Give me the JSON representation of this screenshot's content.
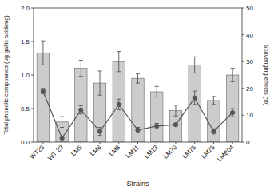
{
  "chart_data": {
    "type": "bar",
    "xlabel": "Strains",
    "ylabel": "Total phenolic compounds (ug gallic acid/mg)",
    "y2label": "Scavenging effects (%)",
    "categories": [
      "WT25",
      "WT 29",
      "LM5",
      "LM6",
      "LM8",
      "LM11",
      "LM13",
      "LM70",
      "LM75",
      "LM75",
      "LMB04"
    ],
    "series": [
      {
        "type": "bar",
        "color": "#cccccc",
        "values": [
          1.33,
          0.3,
          1.1,
          0.88,
          1.2,
          0.95,
          0.75,
          0.47,
          1.15,
          0.62,
          1.0
        ],
        "errors": [
          0.18,
          0.08,
          0.12,
          0.18,
          0.15,
          0.07,
          0.08,
          0.08,
          0.12,
          0.06,
          0.1
        ]
      },
      {
        "type": "line",
        "axis": "y2",
        "color": "#555555",
        "marker": "circle",
        "values": [
          19.0,
          1.5,
          12.0,
          4.0,
          14.0,
          4.5,
          6.0,
          6.5,
          16.5,
          4.0,
          11.0
        ],
        "errors": [
          1.0,
          0.5,
          1.5,
          1.5,
          2.0,
          1.0,
          1.0,
          0.5,
          2.5,
          1.0,
          1.5
        ]
      }
    ],
    "ylim": [
      0,
      2.0
    ],
    "yticks": [
      {
        "value": 0.0,
        "label": "0.0"
      },
      0.5,
      {
        "value": 1.0,
        "label": "1.0"
      },
      1.5,
      {
        "value": 2.0,
        "label": "2.0"
      }
    ],
    "y2lim": [
      0,
      50
    ],
    "y2ticks": [
      0,
      10,
      20,
      30,
      40,
      50
    ],
    "grid": false
  }
}
